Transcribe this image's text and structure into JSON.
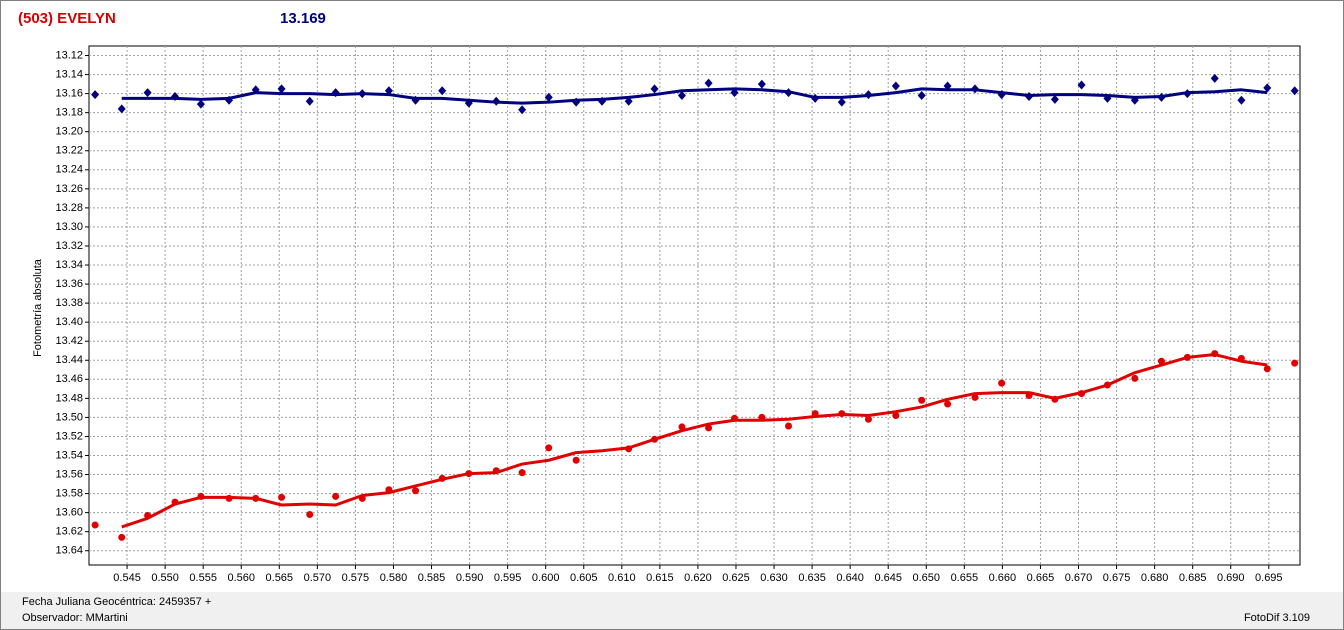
{
  "chart_data": {
    "type": "scatter",
    "title": "(503) EVELYN",
    "subtitle": "13.169",
    "ylabel": "Fotometría absoluta",
    "xlim": [
      0.54,
      0.6991
    ],
    "ylim": [
      13.655,
      13.11
    ],
    "grid": true,
    "xticks": [
      0.545,
      {
        "value": 0.55,
        "label": "0.550"
      },
      0.555,
      {
        "value": 0.56,
        "label": "0.560"
      },
      0.565,
      {
        "value": 0.57,
        "label": "0.570"
      },
      0.575,
      {
        "value": 0.58,
        "label": "0.580"
      },
      0.585,
      {
        "value": 0.59,
        "label": "0.590"
      },
      0.595,
      {
        "value": 0.6,
        "label": "0.600"
      },
      0.605,
      {
        "value": 0.61,
        "label": "0.610"
      },
      0.615,
      {
        "value": 0.62,
        "label": "0.620"
      },
      0.625,
      {
        "value": 0.63,
        "label": "0.630"
      },
      0.635,
      {
        "value": 0.64,
        "label": "0.640"
      },
      0.645,
      {
        "value": 0.65,
        "label": "0.650"
      },
      0.655,
      {
        "value": 0.66,
        "label": "0.660"
      },
      0.665,
      {
        "value": 0.67,
        "label": "0.670"
      },
      0.675,
      {
        "value": 0.68,
        "label": "0.680"
      },
      0.685,
      {
        "value": 0.69,
        "label": "0.690"
      },
      0.695
    ],
    "yticks": [
      13.12,
      13.14,
      13.16,
      13.18,
      {
        "value": 13.2,
        "label": "13.20"
      },
      13.22,
      13.24,
      13.26,
      13.28,
      {
        "value": 13.3,
        "label": "13.30"
      },
      13.32,
      13.34,
      13.36,
      13.38,
      {
        "value": 13.4,
        "label": "13.40"
      },
      13.42,
      13.44,
      13.46,
      13.48,
      {
        "value": 13.5,
        "label": "13.50"
      },
      13.52,
      13.54,
      13.56,
      13.58,
      {
        "value": 13.6,
        "label": "13.60"
      },
      13.62,
      13.64
    ],
    "series": [
      {
        "style": "line",
        "color": "#e00000",
        "x": [
          0.5443,
          0.5477,
          0.5513,
          0.5547,
          0.5584,
          0.5619,
          0.5653,
          0.569,
          0.5724,
          0.5759,
          0.5794,
          0.5829,
          0.5864,
          0.5899,
          0.5935,
          0.5969,
          0.6004,
          0.604,
          0.6074,
          0.6109,
          0.6143,
          0.6179,
          0.6214,
          0.6248,
          0.6284,
          0.6319,
          0.6354,
          0.6389,
          0.6424,
          0.646,
          0.6494,
          0.6528,
          0.6564,
          0.6599,
          0.6635,
          0.6669,
          0.6704,
          0.6738,
          0.6774,
          0.6809,
          0.6843,
          0.6879,
          0.6914,
          0.6948
        ],
        "values": [
          13.615,
          13.606,
          13.591,
          13.584,
          13.584,
          13.585,
          13.592,
          13.591,
          13.592,
          13.582,
          13.579,
          13.572,
          13.565,
          13.559,
          13.558,
          13.549,
          13.545,
          13.537,
          13.535,
          13.532,
          13.523,
          13.514,
          13.507,
          13.503,
          13.503,
          13.502,
          13.499,
          13.497,
          13.498,
          13.494,
          13.489,
          13.481,
          13.475,
          13.474,
          13.474,
          13.48,
          13.474,
          13.466,
          13.453,
          13.445,
          13.437,
          13.434,
          13.441,
          13.445
        ]
      },
      {
        "style": "line",
        "color": "#000080",
        "x": [
          0.5443,
          0.5477,
          0.5513,
          0.5547,
          0.5584,
          0.5619,
          0.5653,
          0.569,
          0.5724,
          0.5759,
          0.5794,
          0.5829,
          0.5864,
          0.5899,
          0.5935,
          0.5969,
          0.6004,
          0.604,
          0.6074,
          0.6109,
          0.6143,
          0.6179,
          0.6214,
          0.6248,
          0.6284,
          0.6319,
          0.6354,
          0.6389,
          0.6424,
          0.646,
          0.6494,
          0.6528,
          0.6564,
          0.6599,
          0.6635,
          0.6669,
          0.6704,
          0.6738,
          0.6774,
          0.6809,
          0.6843,
          0.6879,
          0.6914,
          0.6948
        ],
        "values": [
          13.165,
          13.165,
          13.165,
          13.166,
          13.165,
          13.159,
          13.16,
          13.16,
          13.161,
          13.16,
          13.161,
          13.165,
          13.165,
          13.167,
          13.169,
          13.17,
          13.169,
          13.167,
          13.166,
          13.164,
          13.161,
          13.157,
          13.156,
          13.155,
          13.156,
          13.158,
          13.164,
          13.164,
          13.162,
          13.159,
          13.155,
          13.156,
          13.156,
          13.159,
          13.162,
          13.161,
          13.161,
          13.162,
          13.164,
          13.163,
          13.159,
          13.158,
          13.156,
          13.159
        ]
      },
      {
        "style": "points",
        "marker": "circle",
        "color": "#e00000",
        "x": [
          0.5408,
          0.5443,
          0.5477,
          0.5513,
          0.5547,
          0.5584,
          0.5619,
          0.5653,
          0.569,
          0.5724,
          0.5759,
          0.5794,
          0.5829,
          0.5864,
          0.5899,
          0.5935,
          0.5969,
          0.6004,
          0.604,
          0.6109,
          0.6143,
          0.6179,
          0.6214,
          0.6248,
          0.6284,
          0.6319,
          0.6354,
          0.6389,
          0.6424,
          0.646,
          0.6494,
          0.6528,
          0.6564,
          0.6599,
          0.6635,
          0.6669,
          0.6704,
          0.6738,
          0.6774,
          0.6809,
          0.6843,
          0.6879,
          0.6914,
          0.6948,
          0.6984
        ],
        "values": [
          13.613,
          13.626,
          13.603,
          13.589,
          13.583,
          13.585,
          13.585,
          13.584,
          13.602,
          13.583,
          13.585,
          13.576,
          13.577,
          13.564,
          13.559,
          13.556,
          13.558,
          13.532,
          13.545,
          13.533,
          13.523,
          13.51,
          13.511,
          13.501,
          13.5,
          13.509,
          13.496,
          13.496,
          13.502,
          13.498,
          13.482,
          13.486,
          13.479,
          13.464,
          13.477,
          13.481,
          13.475,
          13.466,
          13.459,
          13.441,
          13.437,
          13.433,
          13.438,
          13.449,
          13.443
        ]
      },
      {
        "style": "points",
        "marker": "diamond",
        "color": "#000080",
        "x": [
          0.5408,
          0.5443,
          0.5477,
          0.5513,
          0.5547,
          0.5584,
          0.5619,
          0.5653,
          0.569,
          0.5724,
          0.5759,
          0.5794,
          0.5829,
          0.5864,
          0.5899,
          0.5935,
          0.5969,
          0.6004,
          0.604,
          0.6074,
          0.6109,
          0.6143,
          0.6179,
          0.6214,
          0.6248,
          0.6284,
          0.6319,
          0.6354,
          0.6389,
          0.6424,
          0.646,
          0.6494,
          0.6528,
          0.6564,
          0.6599,
          0.6635,
          0.6669,
          0.6704,
          0.6738,
          0.6774,
          0.6809,
          0.6843,
          0.6879,
          0.6914,
          0.6948,
          0.6984
        ],
        "values": [
          13.161,
          13.176,
          13.159,
          13.163,
          13.171,
          13.167,
          13.156,
          13.155,
          13.168,
          13.159,
          13.16,
          13.157,
          13.167,
          13.157,
          13.17,
          13.168,
          13.177,
          13.164,
          13.169,
          13.168,
          13.168,
          13.155,
          13.162,
          13.149,
          13.159,
          13.15,
          13.159,
          13.165,
          13.169,
          13.161,
          13.152,
          13.162,
          13.152,
          13.155,
          13.161,
          13.163,
          13.166,
          13.151,
          13.165,
          13.167,
          13.164,
          13.16,
          13.144,
          13.167,
          13.154,
          13.157
        ]
      }
    ]
  },
  "footer": {
    "date": "Fecha Juliana Geocéntrica: 2459357 +",
    "observer": "Observador: MMartini",
    "software": "FotoDif 3.109"
  }
}
